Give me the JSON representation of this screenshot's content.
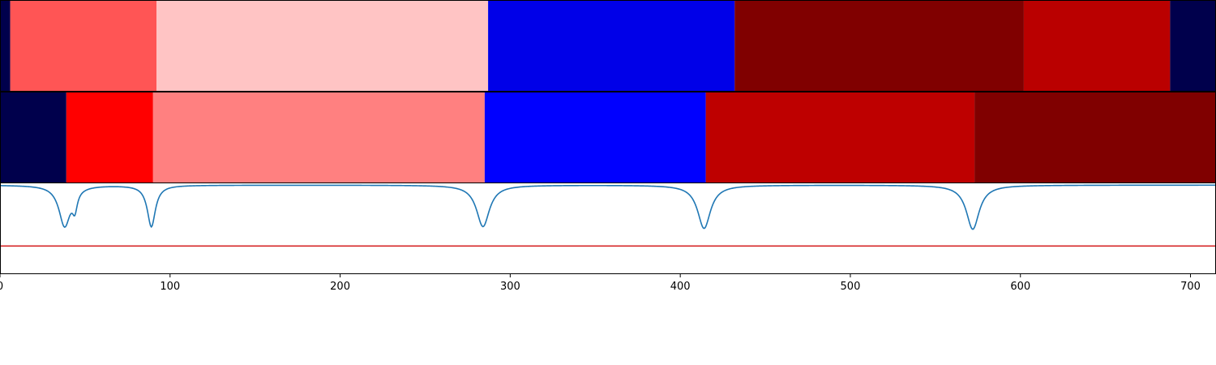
{
  "chart_data": [
    {
      "type": "segments",
      "name": "top-segment-strip",
      "x_range": [
        0,
        715
      ],
      "segments": [
        {
          "start": 0,
          "end": 6,
          "color": "#00004c"
        },
        {
          "start": 6,
          "end": 92,
          "color": "#ff5555"
        },
        {
          "start": 92,
          "end": 287,
          "color": "#ffc4c4"
        },
        {
          "start": 287,
          "end": 432,
          "color": "#0000e8"
        },
        {
          "start": 432,
          "end": 602,
          "color": "#800000"
        },
        {
          "start": 602,
          "end": 688,
          "color": "#ba0000"
        },
        {
          "start": 688,
          "end": 715,
          "color": "#00004c"
        }
      ]
    },
    {
      "type": "segments",
      "name": "middle-segment-strip",
      "x_range": [
        0,
        715
      ],
      "segments": [
        {
          "start": 0,
          "end": 39,
          "color": "#00004c"
        },
        {
          "start": 39,
          "end": 90,
          "color": "#ff0000"
        },
        {
          "start": 90,
          "end": 285,
          "color": "#ff8080"
        },
        {
          "start": 285,
          "end": 415,
          "color": "#0000ff"
        },
        {
          "start": 415,
          "end": 573,
          "color": "#be0000"
        },
        {
          "start": 573,
          "end": 715,
          "color": "#800000"
        }
      ]
    },
    {
      "type": "line",
      "name": "boundary-score",
      "x_range": [
        0,
        715
      ],
      "y_range": [
        -1.0,
        0.02
      ],
      "baseline": 0,
      "series": [
        {
          "name": "score",
          "color": "#1f77b4",
          "dips": [
            {
              "x": 38,
              "depth": 0.46,
              "width": 7
            },
            {
              "x": 44,
              "depth": 0.2,
              "width": 3
            },
            {
              "x": 89,
              "depth": 0.47,
              "width": 5
            },
            {
              "x": 284,
              "depth": 0.47,
              "width": 8
            },
            {
              "x": 414,
              "depth": 0.49,
              "width": 8
            },
            {
              "x": 572,
              "depth": 0.5,
              "width": 8
            }
          ]
        },
        {
          "name": "threshold",
          "color": "#d62728",
          "value": -0.69
        }
      ],
      "xticks": [
        0,
        100,
        200,
        300,
        400,
        500,
        600,
        700
      ],
      "xtick_labels": [
        "0",
        "100",
        "200",
        "300",
        "400",
        "500",
        "600",
        "700"
      ]
    }
  ]
}
